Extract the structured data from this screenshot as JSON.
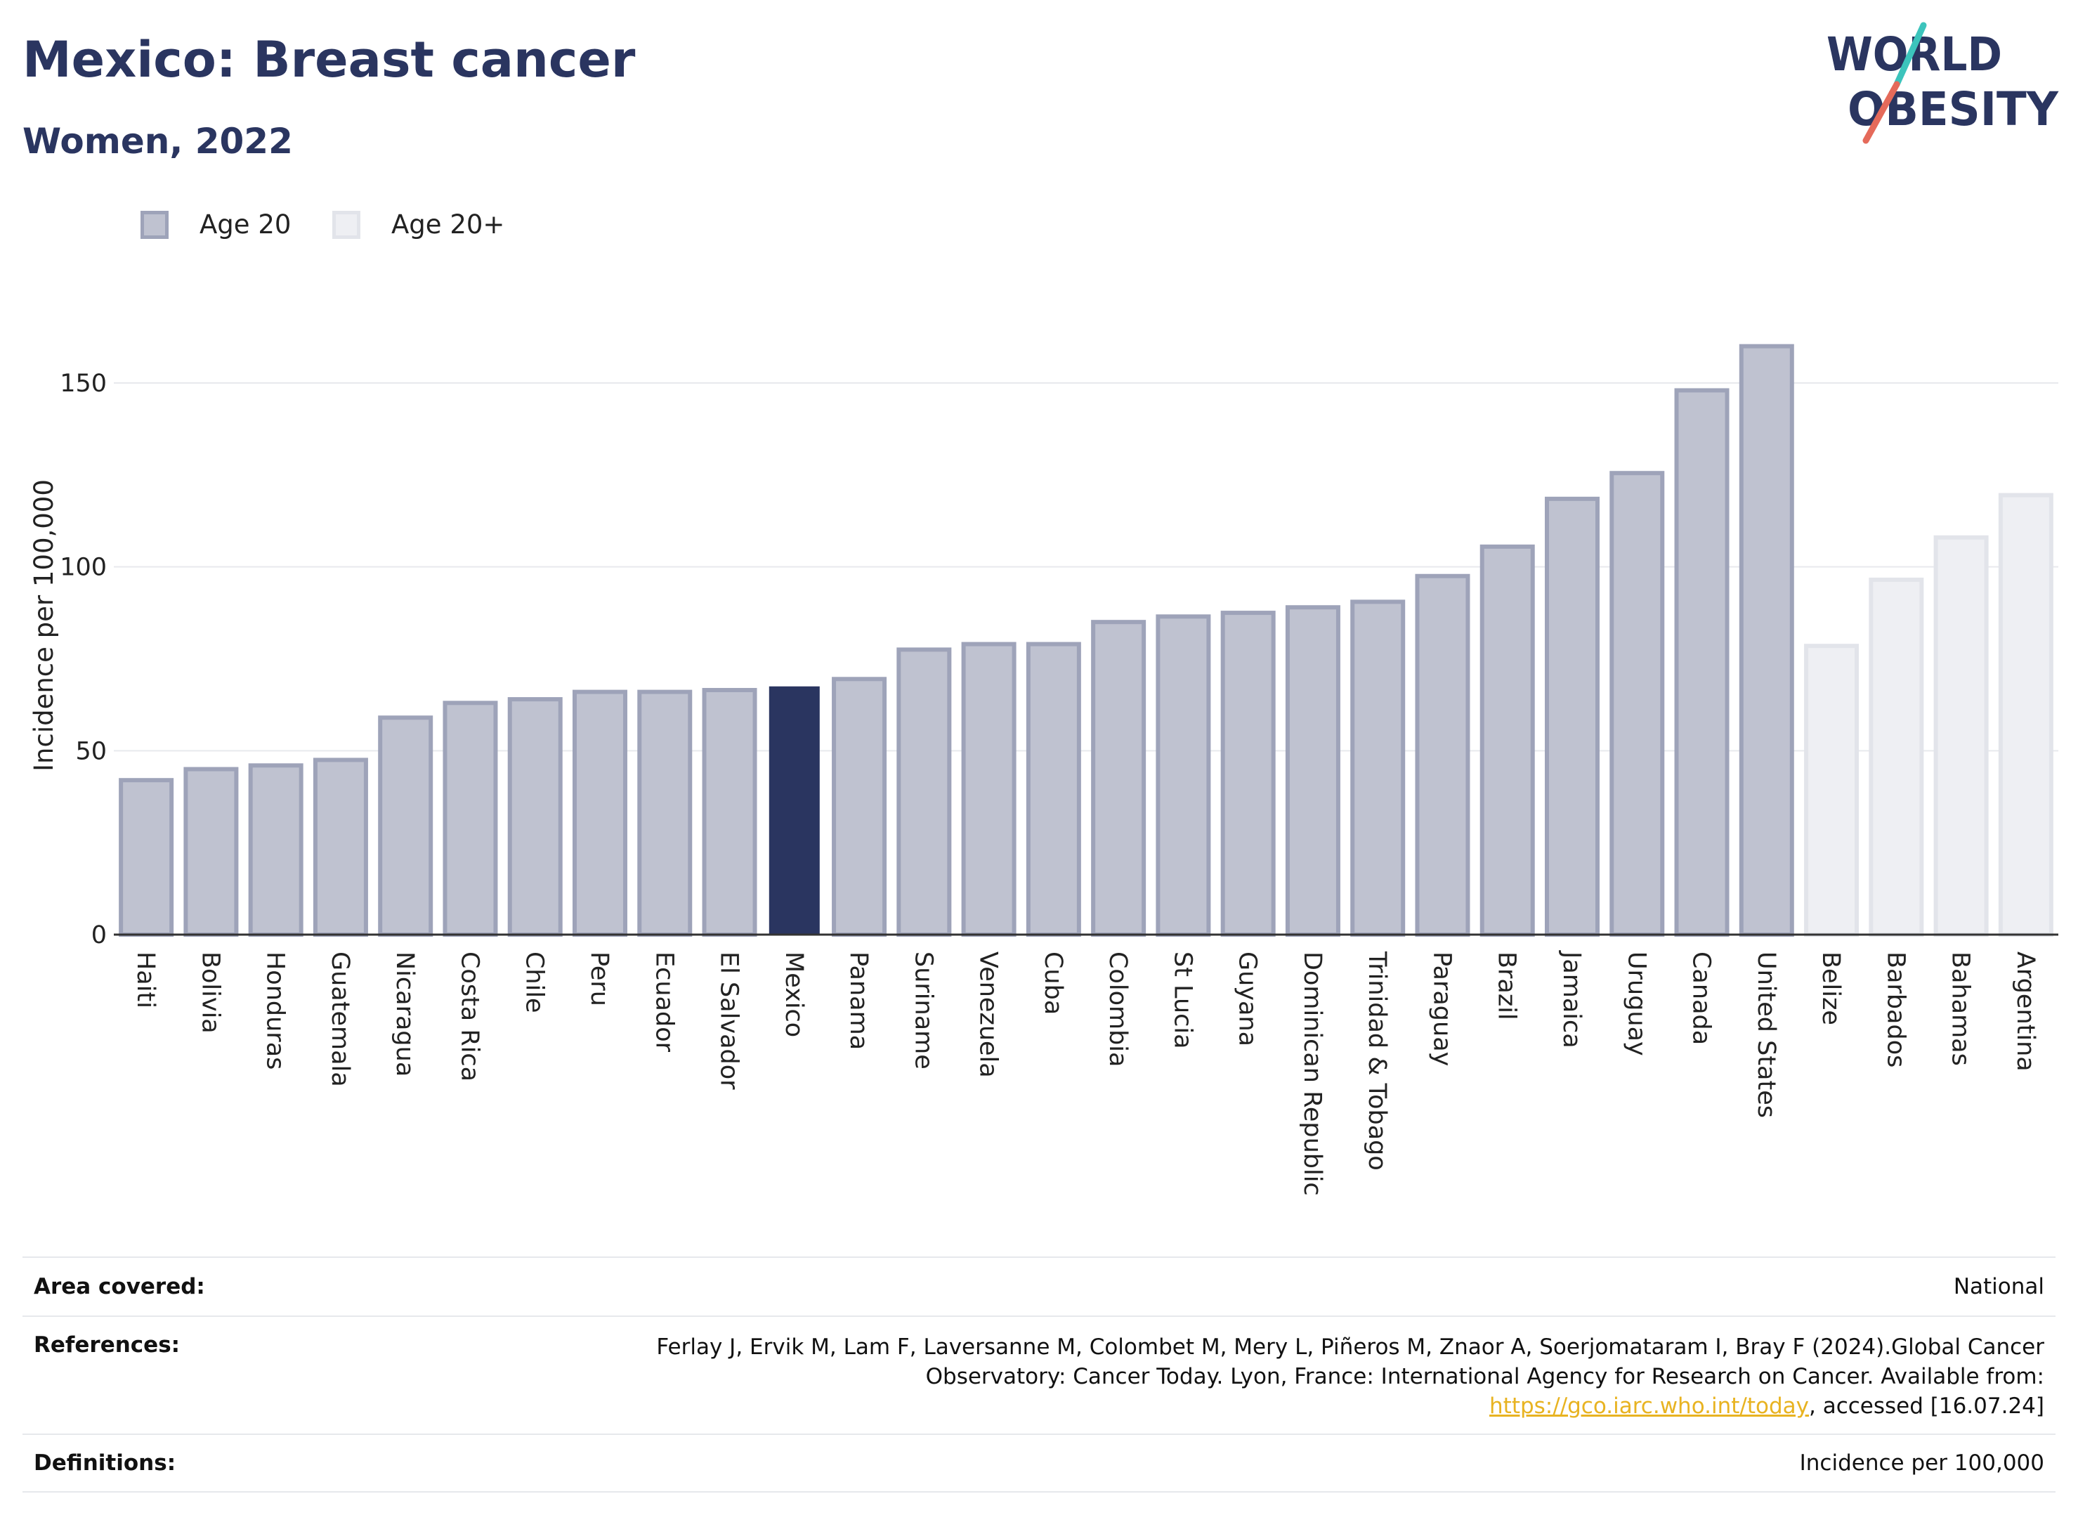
{
  "header": {
    "title": "Mexico: Breast cancer",
    "subtitle": "Women, 2022"
  },
  "logo": {
    "line1": "WORLD",
    "line2": "OBESITY"
  },
  "legend": [
    {
      "label": "Age 20",
      "color": "#bfc2d0"
    },
    {
      "label": "Age 20+",
      "color": "#eeeff3"
    }
  ],
  "chart_data": {
    "type": "bar",
    "ylabel": "Incidence per 100,000",
    "xlabel": "",
    "ylim": [
      0,
      175
    ],
    "yticks": [
      0,
      50,
      100,
      150
    ],
    "grid": true,
    "legend_position": "top-left",
    "highlight": "Mexico",
    "colors": {
      "age20": "#bfc2d0",
      "age20plus": "#eeeff3",
      "highlight": "#2a3560"
    },
    "categories": [
      "Haiti",
      "Bolivia",
      "Honduras",
      "Guatemala",
      "Nicaragua",
      "Costa Rica",
      "Chile",
      "Peru",
      "Ecuador",
      "El Salvador",
      "Mexico",
      "Panama",
      "Suriname",
      "Venezuela",
      "Cuba",
      "Colombia",
      "St Lucia",
      "Guyana",
      "Dominican Republic",
      "Trinidad & Tobago",
      "Paraguay",
      "Brazil",
      "Jamaica",
      "Uruguay",
      "Canada",
      "United States",
      "Belize",
      "Barbados",
      "Bahamas",
      "Argentina"
    ],
    "values": [
      42,
      45,
      46,
      47.5,
      59,
      63,
      64,
      66,
      66,
      66.5,
      67.5,
      69.5,
      77.5,
      79,
      79,
      85,
      86.5,
      87.5,
      89,
      90.5,
      97.5,
      105.5,
      118.5,
      125.5,
      148,
      160,
      78.5,
      96.5,
      108,
      119.5
    ],
    "series_group": [
      "Age 20",
      "Age 20",
      "Age 20",
      "Age 20",
      "Age 20",
      "Age 20",
      "Age 20",
      "Age 20",
      "Age 20",
      "Age 20",
      "Age 20",
      "Age 20",
      "Age 20",
      "Age 20",
      "Age 20",
      "Age 20",
      "Age 20",
      "Age 20",
      "Age 20",
      "Age 20",
      "Age 20",
      "Age 20",
      "Age 20",
      "Age 20",
      "Age 20",
      "Age 20",
      "Age 20+",
      "Age 20+",
      "Age 20+",
      "Age 20+"
    ]
  },
  "footer": {
    "area_label": "Area covered:",
    "area_value": "National",
    "refs_label": "References:",
    "refs_text_1": "Ferlay J, Ervik M, Lam F, Laversanne M, Colombet M, Mery L, Piñeros M, Znaor A, Soerjomataram I, Bray F (2024).Global Cancer Observatory: Cancer Today. Lyon, France: International Agency for Research on Cancer. Available from: ",
    "refs_link": "https://gco.iarc.who.int/today",
    "refs_text_2": ", accessed [16.07.24]",
    "defs_label": "Definitions:",
    "defs_value": "Incidence per 100,000"
  }
}
